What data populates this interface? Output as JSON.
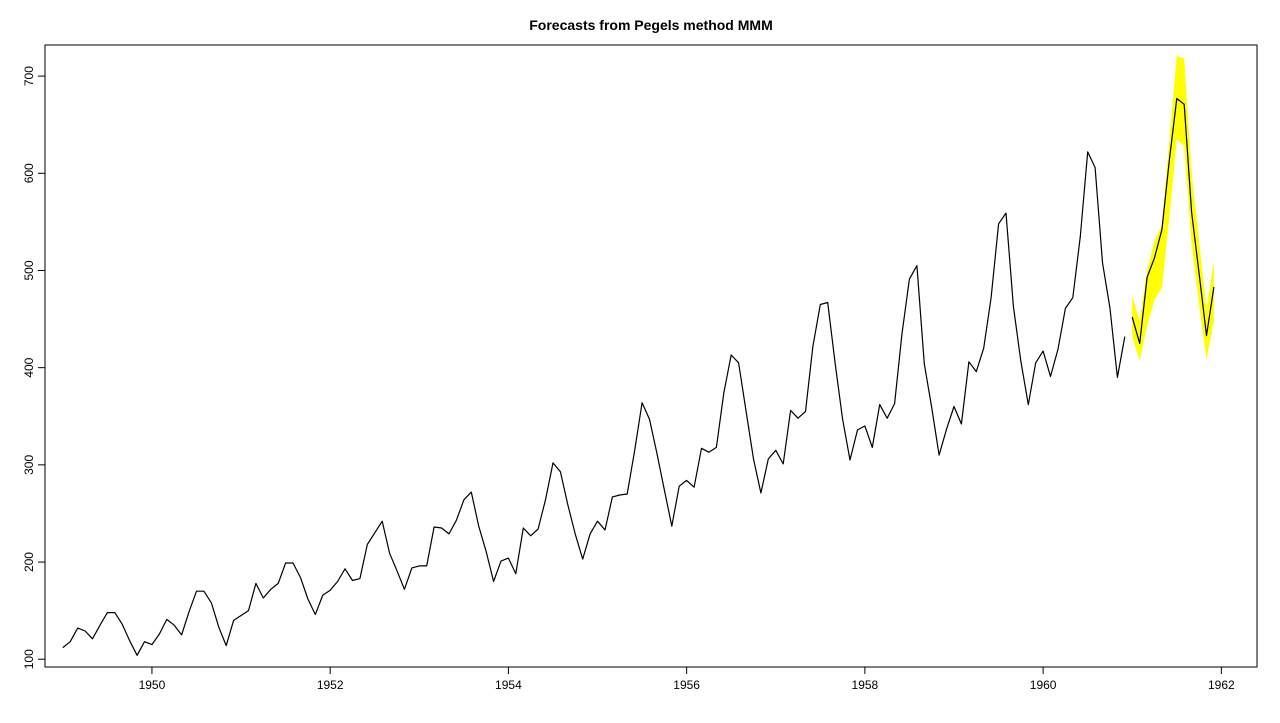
{
  "chart_data": {
    "type": "line",
    "title": "Forecasts from Pegels method MMM",
    "xlabel": "",
    "ylabel": "",
    "xlim": [
      1948.8,
      1962.4
    ],
    "ylim": [
      92,
      732
    ],
    "x_ticks": [
      1950,
      1952,
      1954,
      1956,
      1958,
      1960,
      1962
    ],
    "x_tick_labels": [
      "1950",
      "1952",
      "1954",
      "1956",
      "1958",
      "1960",
      "1962"
    ],
    "y_ticks": [
      100,
      200,
      300,
      400,
      500,
      600,
      700
    ],
    "y_tick_labels": [
      "100",
      "200",
      "300",
      "400",
      "500",
      "600",
      "700"
    ],
    "grid": false,
    "series": [
      {
        "role": "observed",
        "start": 1949,
        "frequency": 12,
        "values": [
          112,
          118,
          132,
          129,
          121,
          135,
          148,
          148,
          136,
          119,
          104,
          118,
          115,
          126,
          141,
          135,
          125,
          149,
          170,
          170,
          158,
          133,
          114,
          140,
          145,
          150,
          178,
          163,
          172,
          178,
          199,
          199,
          184,
          162,
          146,
          166,
          171,
          180,
          193,
          181,
          183,
          218,
          230,
          242,
          209,
          191,
          172,
          194,
          196,
          196,
          236,
          235,
          229,
          243,
          264,
          272,
          237,
          211,
          180,
          201,
          204,
          188,
          235,
          227,
          234,
          264,
          302,
          293,
          259,
          229,
          203,
          229,
          242,
          233,
          267,
          269,
          270,
          315,
          364,
          347,
          312,
          274,
          237,
          278,
          284,
          277,
          317,
          313,
          318,
          374,
          413,
          405,
          355,
          306,
          271,
          306,
          315,
          301,
          356,
          348,
          355,
          422,
          465,
          467,
          404,
          347,
          305,
          336,
          340,
          318,
          362,
          348,
          363,
          435,
          491,
          505,
          404,
          359,
          310,
          337,
          360,
          342,
          406,
          396,
          420,
          472,
          548,
          559,
          463,
          407,
          362,
          405,
          417,
          391,
          419,
          461,
          472,
          535,
          622,
          606,
          508,
          461,
          390,
          432
        ],
        "color": "#000000"
      },
      {
        "role": "forecast",
        "start": 1961,
        "frequency": 12,
        "values": [
          452,
          425,
          493,
          513,
          542,
          614,
          677,
          671,
          560,
          497,
          433,
          483
        ],
        "color": "#000000"
      },
      {
        "role": "prediction-interval",
        "start": 1961,
        "frequency": 12,
        "lower": [
          432,
          407,
          443,
          470,
          482,
          555,
          635,
          628,
          527,
          465,
          408,
          448
        ],
        "upper": [
          474,
          448,
          500,
          530,
          547,
          635,
          721,
          718,
          600,
          530,
          460,
          510
        ],
        "color": "#FFFF00"
      }
    ]
  }
}
